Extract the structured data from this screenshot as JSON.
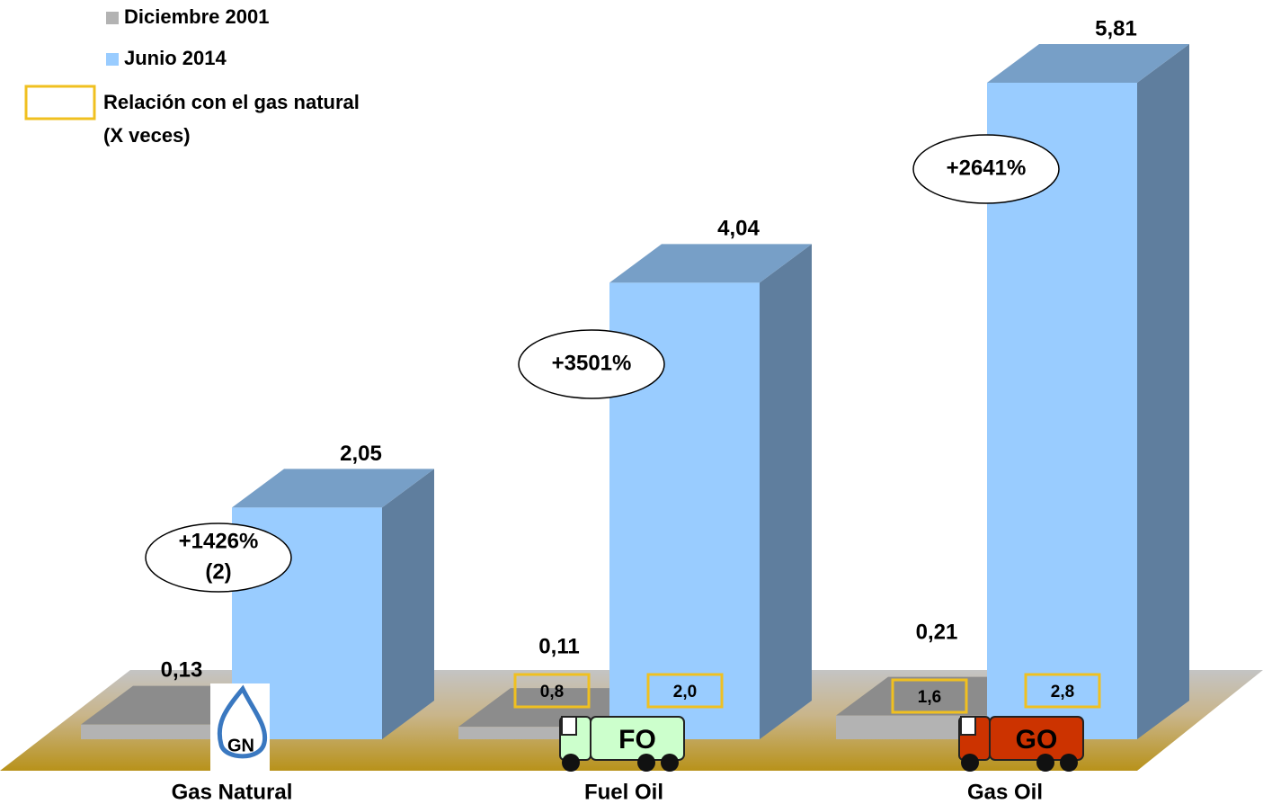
{
  "chart_data": {
    "type": "bar3d",
    "categories": [
      "Gas Natural",
      "Fuel Oil",
      "Gas Oil"
    ],
    "series": [
      {
        "name": "Diciembre 2001",
        "color": "#b3b3b3",
        "values": [
          0.13,
          0.11,
          0.21
        ],
        "value_labels": [
          "0,13",
          "0,11",
          "0,21"
        ],
        "ratio_labels": [
          null,
          "0,8",
          "1,6"
        ]
      },
      {
        "name": "Junio 2014",
        "color": "#99ccff",
        "values": [
          2.05,
          4.04,
          5.81
        ],
        "value_labels": [
          "2,05",
          "4,04",
          "5,81"
        ],
        "ratio_labels": [
          null,
          "2,0",
          "2,8"
        ]
      }
    ],
    "ratio_legend": [
      "Relación con el gas natural",
      "(X veces)"
    ],
    "ratio_color": "#f0c020",
    "annotations": [
      {
        "lines": [
          "+1426%",
          "(2)"
        ]
      },
      {
        "lines": [
          "+3501%"
        ]
      },
      {
        "lines": [
          "+2641%"
        ]
      }
    ],
    "icons": [
      "GN",
      "FO",
      "GO"
    ]
  }
}
